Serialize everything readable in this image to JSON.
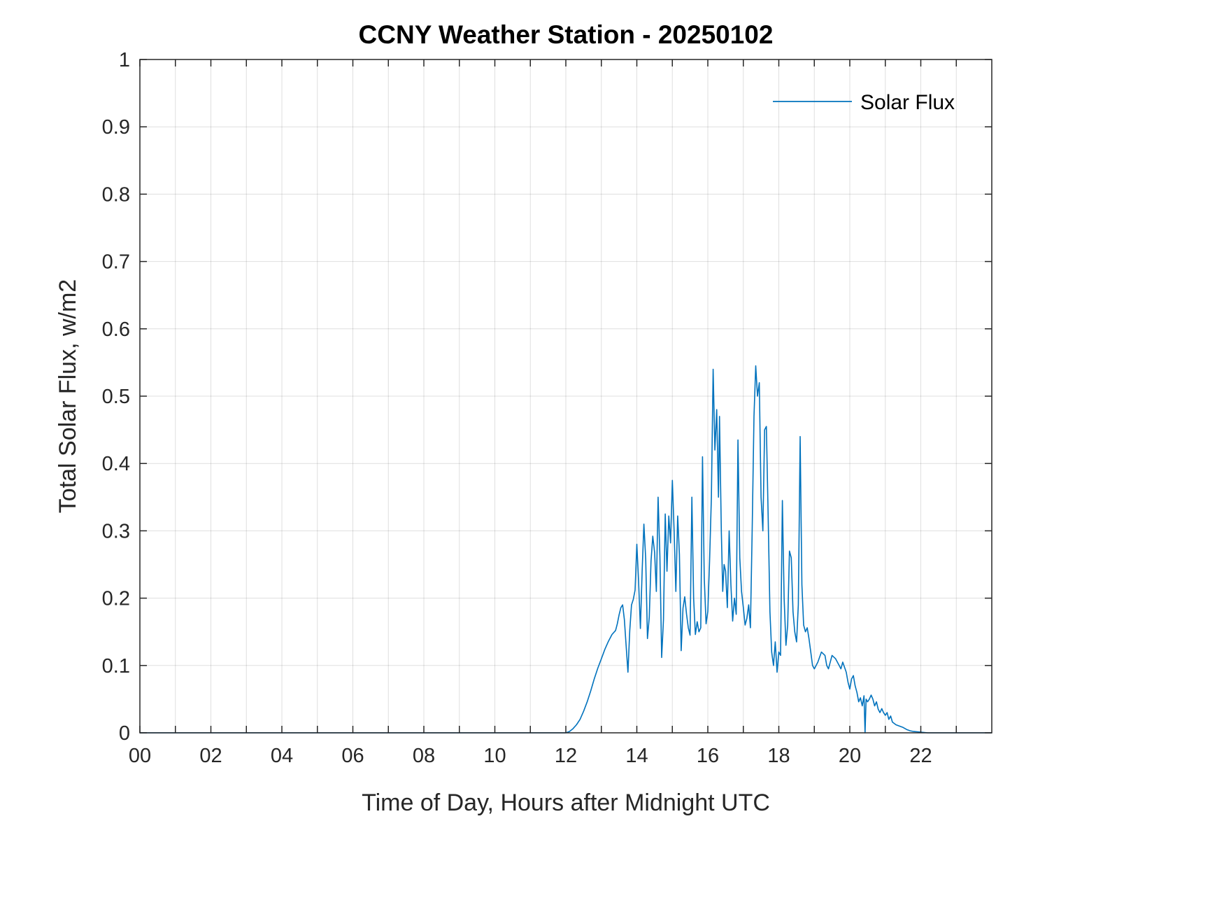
{
  "window": {
    "background": "#ffffff"
  },
  "chart_data": {
    "type": "line",
    "title": "CCNY Weather Station - 20250102",
    "xlabel": "Time of Day, Hours after Midnight UTC",
    "ylabel": "Total Solar Flux, w/m2",
    "xlim": [
      0,
      24
    ],
    "ylim": [
      0,
      1
    ],
    "grid": true,
    "axis_color": "#262626",
    "grid_color": "#262626",
    "grid_opacity": 0.15,
    "xticks": [
      0,
      2,
      4,
      6,
      8,
      10,
      12,
      14,
      16,
      18,
      20,
      22
    ],
    "xticklabels": [
      "00",
      "02",
      "04",
      "06",
      "08",
      "10",
      "12",
      "14",
      "16",
      "18",
      "20",
      "22"
    ],
    "xminorticks": [
      1,
      3,
      5,
      7,
      9,
      11,
      13,
      15,
      17,
      19,
      21,
      23
    ],
    "yticks": [
      0,
      0.1,
      0.2,
      0.3,
      0.4,
      0.5,
      0.6,
      0.7,
      0.8,
      0.9,
      1
    ],
    "yticklabels": [
      "0",
      "0.1",
      "0.2",
      "0.3",
      "0.4",
      "0.5",
      "0.6",
      "0.7",
      "0.8",
      "0.9",
      "1"
    ],
    "legend": {
      "position": "northeast",
      "entries": [
        {
          "label": "Solar Flux",
          "color": "#0072BD"
        }
      ]
    },
    "series": [
      {
        "name": "Solar Flux",
        "color": "#0072BD",
        "points": [
          [
            0,
            0
          ],
          [
            1,
            0
          ],
          [
            2,
            0
          ],
          [
            3,
            0
          ],
          [
            4,
            0
          ],
          [
            5,
            0
          ],
          [
            6,
            0
          ],
          [
            7,
            0
          ],
          [
            8,
            0
          ],
          [
            9,
            0
          ],
          [
            10,
            0
          ],
          [
            11,
            0
          ],
          [
            11.5,
            0
          ],
          [
            12,
            0
          ],
          [
            12.1,
            0.002
          ],
          [
            12.2,
            0.006
          ],
          [
            12.3,
            0.012
          ],
          [
            12.4,
            0.02
          ],
          [
            12.5,
            0.032
          ],
          [
            12.6,
            0.046
          ],
          [
            12.7,
            0.062
          ],
          [
            12.8,
            0.08
          ],
          [
            12.9,
            0.096
          ],
          [
            13,
            0.11
          ],
          [
            13.1,
            0.124
          ],
          [
            13.2,
            0.136
          ],
          [
            13.3,
            0.146
          ],
          [
            13.4,
            0.152
          ],
          [
            13.45,
            0.162
          ],
          [
            13.5,
            0.175
          ],
          [
            13.55,
            0.186
          ],
          [
            13.6,
            0.19
          ],
          [
            13.65,
            0.168
          ],
          [
            13.7,
            0.128
          ],
          [
            13.75,
            0.09
          ],
          [
            13.8,
            0.152
          ],
          [
            13.85,
            0.19
          ],
          [
            13.9,
            0.198
          ],
          [
            13.95,
            0.212
          ],
          [
            14,
            0.28
          ],
          [
            14.05,
            0.225
          ],
          [
            14.1,
            0.155
          ],
          [
            14.15,
            0.24
          ],
          [
            14.2,
            0.31
          ],
          [
            14.25,
            0.258
          ],
          [
            14.3,
            0.14
          ],
          [
            14.35,
            0.172
          ],
          [
            14.4,
            0.255
          ],
          [
            14.45,
            0.292
          ],
          [
            14.5,
            0.268
          ],
          [
            14.55,
            0.21
          ],
          [
            14.6,
            0.35
          ],
          [
            14.65,
            0.262
          ],
          [
            14.7,
            0.112
          ],
          [
            14.75,
            0.168
          ],
          [
            14.8,
            0.325
          ],
          [
            14.85,
            0.24
          ],
          [
            14.9,
            0.322
          ],
          [
            14.95,
            0.282
          ],
          [
            15,
            0.375
          ],
          [
            15.05,
            0.3
          ],
          [
            15.1,
            0.21
          ],
          [
            15.15,
            0.322
          ],
          [
            15.2,
            0.265
          ],
          [
            15.25,
            0.122
          ],
          [
            15.3,
            0.185
          ],
          [
            15.35,
            0.202
          ],
          [
            15.4,
            0.176
          ],
          [
            15.45,
            0.156
          ],
          [
            15.5,
            0.145
          ],
          [
            15.55,
            0.35
          ],
          [
            15.6,
            0.2
          ],
          [
            15.65,
            0.146
          ],
          [
            15.7,
            0.165
          ],
          [
            15.75,
            0.15
          ],
          [
            15.8,
            0.156
          ],
          [
            15.85,
            0.41
          ],
          [
            15.9,
            0.23
          ],
          [
            15.95,
            0.162
          ],
          [
            16,
            0.18
          ],
          [
            16.05,
            0.255
          ],
          [
            16.1,
            0.35
          ],
          [
            16.15,
            0.54
          ],
          [
            16.2,
            0.42
          ],
          [
            16.25,
            0.48
          ],
          [
            16.3,
            0.35
          ],
          [
            16.33,
            0.47
          ],
          [
            16.38,
            0.3
          ],
          [
            16.42,
            0.21
          ],
          [
            16.46,
            0.25
          ],
          [
            16.5,
            0.24
          ],
          [
            16.55,
            0.186
          ],
          [
            16.6,
            0.3
          ],
          [
            16.65,
            0.22
          ],
          [
            16.7,
            0.166
          ],
          [
            16.75,
            0.2
          ],
          [
            16.8,
            0.176
          ],
          [
            16.85,
            0.435
          ],
          [
            16.9,
            0.26
          ],
          [
            16.95,
            0.21
          ],
          [
            17,
            0.186
          ],
          [
            17.05,
            0.16
          ],
          [
            17.1,
            0.17
          ],
          [
            17.15,
            0.19
          ],
          [
            17.2,
            0.156
          ],
          [
            17.25,
            0.3
          ],
          [
            17.3,
            0.47
          ],
          [
            17.35,
            0.545
          ],
          [
            17.4,
            0.5
          ],
          [
            17.45,
            0.52
          ],
          [
            17.5,
            0.35
          ],
          [
            17.55,
            0.3
          ],
          [
            17.6,
            0.45
          ],
          [
            17.65,
            0.455
          ],
          [
            17.7,
            0.32
          ],
          [
            17.75,
            0.18
          ],
          [
            17.8,
            0.12
          ],
          [
            17.85,
            0.1
          ],
          [
            17.9,
            0.135
          ],
          [
            17.95,
            0.09
          ],
          [
            18,
            0.12
          ],
          [
            18.05,
            0.115
          ],
          [
            18.1,
            0.345
          ],
          [
            18.15,
            0.2
          ],
          [
            18.2,
            0.13
          ],
          [
            18.25,
            0.16
          ],
          [
            18.3,
            0.27
          ],
          [
            18.35,
            0.26
          ],
          [
            18.4,
            0.18
          ],
          [
            18.45,
            0.15
          ],
          [
            18.5,
            0.135
          ],
          [
            18.55,
            0.19
          ],
          [
            18.6,
            0.44
          ],
          [
            18.65,
            0.22
          ],
          [
            18.7,
            0.16
          ],
          [
            18.75,
            0.15
          ],
          [
            18.8,
            0.156
          ],
          [
            18.85,
            0.14
          ],
          [
            18.9,
            0.12
          ],
          [
            18.95,
            0.1
          ],
          [
            19,
            0.095
          ],
          [
            19.1,
            0.105
          ],
          [
            19.2,
            0.12
          ],
          [
            19.3,
            0.115
          ],
          [
            19.35,
            0.1
          ],
          [
            19.4,
            0.095
          ],
          [
            19.5,
            0.115
          ],
          [
            19.6,
            0.11
          ],
          [
            19.7,
            0.1
          ],
          [
            19.75,
            0.095
          ],
          [
            19.8,
            0.105
          ],
          [
            19.9,
            0.09
          ],
          [
            19.95,
            0.075
          ],
          [
            20,
            0.065
          ],
          [
            20.05,
            0.08
          ],
          [
            20.1,
            0.085
          ],
          [
            20.15,
            0.07
          ],
          [
            20.2,
            0.06
          ],
          [
            20.25,
            0.046
          ],
          [
            20.3,
            0.052
          ],
          [
            20.35,
            0.04
          ],
          [
            20.4,
            0.055
          ],
          [
            20.43,
            0
          ],
          [
            20.46,
            0.05
          ],
          [
            20.5,
            0.046
          ],
          [
            20.55,
            0.05
          ],
          [
            20.6,
            0.056
          ],
          [
            20.65,
            0.05
          ],
          [
            20.7,
            0.04
          ],
          [
            20.75,
            0.046
          ],
          [
            20.8,
            0.035
          ],
          [
            20.85,
            0.03
          ],
          [
            20.9,
            0.036
          ],
          [
            20.95,
            0.03
          ],
          [
            21,
            0.026
          ],
          [
            21.05,
            0.03
          ],
          [
            21.1,
            0.02
          ],
          [
            21.15,
            0.025
          ],
          [
            21.2,
            0.016
          ],
          [
            21.3,
            0.012
          ],
          [
            21.4,
            0.01
          ],
          [
            21.5,
            0.008
          ],
          [
            21.6,
            0.005
          ],
          [
            21.7,
            0.003
          ],
          [
            21.8,
            0.002
          ],
          [
            22,
            0.001
          ],
          [
            22.2,
            0
          ],
          [
            23,
            0
          ],
          [
            24,
            0
          ]
        ]
      }
    ]
  }
}
